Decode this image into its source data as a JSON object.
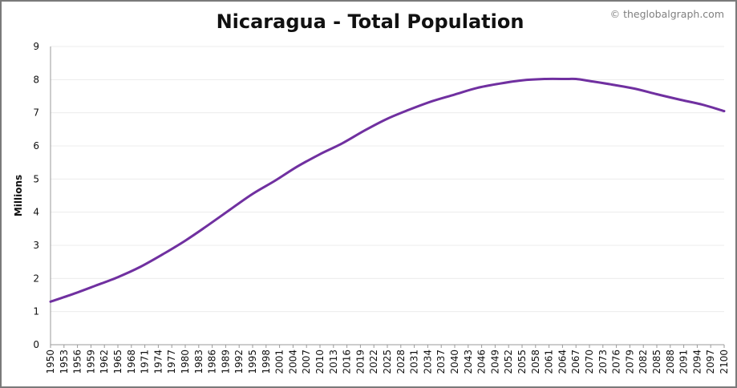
{
  "header": {
    "title": "Nicaragua - Total Population",
    "credit": "© theglobalgraph.com"
  },
  "colors": {
    "line": "#7030a0",
    "grid": "#ececec",
    "axis": "#9a9a9a"
  },
  "chart_data": {
    "type": "line",
    "title": "Nicaragua - Total Population",
    "xlabel": "",
    "ylabel": "Millions",
    "ylim": [
      0,
      9
    ],
    "yticks": [
      0,
      1,
      2,
      3,
      4,
      5,
      6,
      7,
      8,
      9
    ],
    "grid": true,
    "xlim": [
      1950,
      2100
    ],
    "xticks": [
      1950,
      1953,
      1956,
      1959,
      1962,
      1965,
      1968,
      1971,
      1974,
      1977,
      1980,
      1983,
      1986,
      1989,
      1992,
      1995,
      1998,
      2001,
      2004,
      2007,
      2010,
      2013,
      2016,
      2019,
      2022,
      2025,
      2028,
      2031,
      2034,
      2037,
      2040,
      2043,
      2046,
      2049,
      2052,
      2055,
      2058,
      2061,
      2064,
      2067,
      2070,
      2073,
      2076,
      2079,
      2082,
      2085,
      2088,
      2091,
      2094,
      2097,
      2100
    ],
    "x": [
      1950,
      1955,
      1960,
      1965,
      1970,
      1975,
      1980,
      1985,
      1990,
      1995,
      2000,
      2005,
      2010,
      2015,
      2020,
      2025,
      2030,
      2035,
      2040,
      2045,
      2050,
      2055,
      2060,
      2065,
      2067,
      2070,
      2075,
      2080,
      2085,
      2090,
      2095,
      2100
    ],
    "y": [
      1.3,
      1.53,
      1.78,
      2.04,
      2.35,
      2.73,
      3.14,
      3.6,
      4.08,
      4.55,
      4.95,
      5.38,
      5.75,
      6.08,
      6.47,
      6.82,
      7.1,
      7.35,
      7.55,
      7.75,
      7.88,
      7.98,
      8.02,
      8.02,
      8.02,
      7.96,
      7.85,
      7.73,
      7.56,
      7.4,
      7.25,
      7.05
    ]
  }
}
